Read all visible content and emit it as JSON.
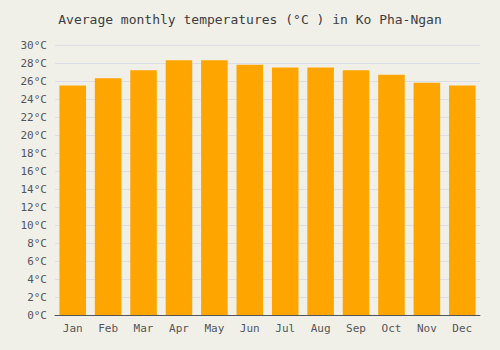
{
  "chart_data": {
    "type": "bar",
    "title": "Average monthly temperatures (°C ) in Ko Pha-Ngan",
    "categories": [
      "Jan",
      "Feb",
      "Mar",
      "Apr",
      "May",
      "Jun",
      "Jul",
      "Aug",
      "Sep",
      "Oct",
      "Nov",
      "Dec"
    ],
    "values": [
      25.5,
      26.3,
      27.2,
      28.3,
      28.3,
      27.8,
      27.5,
      27.5,
      27.2,
      26.7,
      25.8,
      25.5
    ],
    "color": "#FFA500",
    "ylim": [
      0,
      30
    ],
    "yticks": [
      {
        "value": 0,
        "label": "0°C"
      },
      {
        "value": 2,
        "label": "2°C"
      },
      {
        "value": 4,
        "label": "4°C"
      },
      {
        "value": 6,
        "label": "6°C"
      },
      {
        "value": 8,
        "label": "8°C"
      },
      {
        "value": 10,
        "label": "10°C"
      },
      {
        "value": 12,
        "label": "12°C"
      },
      {
        "value": 14,
        "label": "14°C"
      },
      {
        "value": 16,
        "label": "16°C"
      },
      {
        "value": 18,
        "label": "18°C"
      },
      {
        "value": 20,
        "label": "20°C"
      },
      {
        "value": 22,
        "label": "22°C"
      },
      {
        "value": 24,
        "label": "24°C"
      },
      {
        "value": 26,
        "label": "26°C"
      },
      {
        "value": 28,
        "label": "28°C"
      },
      {
        "value": 30,
        "label": "30°C"
      }
    ],
    "grid": true
  }
}
